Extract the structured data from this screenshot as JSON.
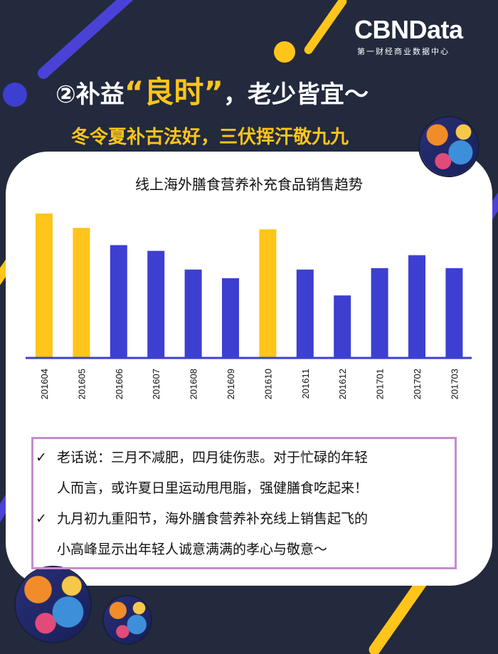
{
  "brand": {
    "name": "CBNData",
    "tagline": "第一财经商业数据中心"
  },
  "header": {
    "title_prefix": "②补益",
    "title_highlight": "“良时”",
    "title_suffix": "，老少皆宜～",
    "subtitle": "冬令夏补古法好，三伏挥汗敬九九"
  },
  "colors": {
    "background": "#232a3d",
    "accent_yellow": "#ffc51a",
    "bar_blue": "#3d3fd1",
    "note_border": "#c48cd0"
  },
  "chart_data": {
    "type": "bar",
    "title": "线上海外膳食营养补充食品销售趋势",
    "categories": [
      "201604",
      "201605",
      "201606",
      "201607",
      "201608",
      "201609",
      "201610",
      "201611",
      "201612",
      "201701",
      "201702",
      "201703"
    ],
    "values": [
      100,
      90,
      78,
      74,
      61,
      55,
      89,
      61,
      43,
      62,
      71,
      62
    ],
    "highlighted": [
      true,
      true,
      false,
      false,
      false,
      false,
      true,
      false,
      false,
      false,
      false,
      false
    ],
    "ylim": [
      0,
      100
    ],
    "grid": false,
    "xlabel": "",
    "ylabel": ""
  },
  "notes": [
    {
      "check": "✓",
      "line1": "老话说：三月不减肥，四月徒伤悲。对于忙碌的年轻",
      "line2": "人而言，或许夏日里运动甩甩脂，强健膳食吃起来！"
    },
    {
      "check": "✓",
      "line1": "九月初九重阳节，海外膳食营养补充线上销售起飞的",
      "line2": "小高峰显示出年轻人诚意满满的孝心与敬意～"
    }
  ]
}
